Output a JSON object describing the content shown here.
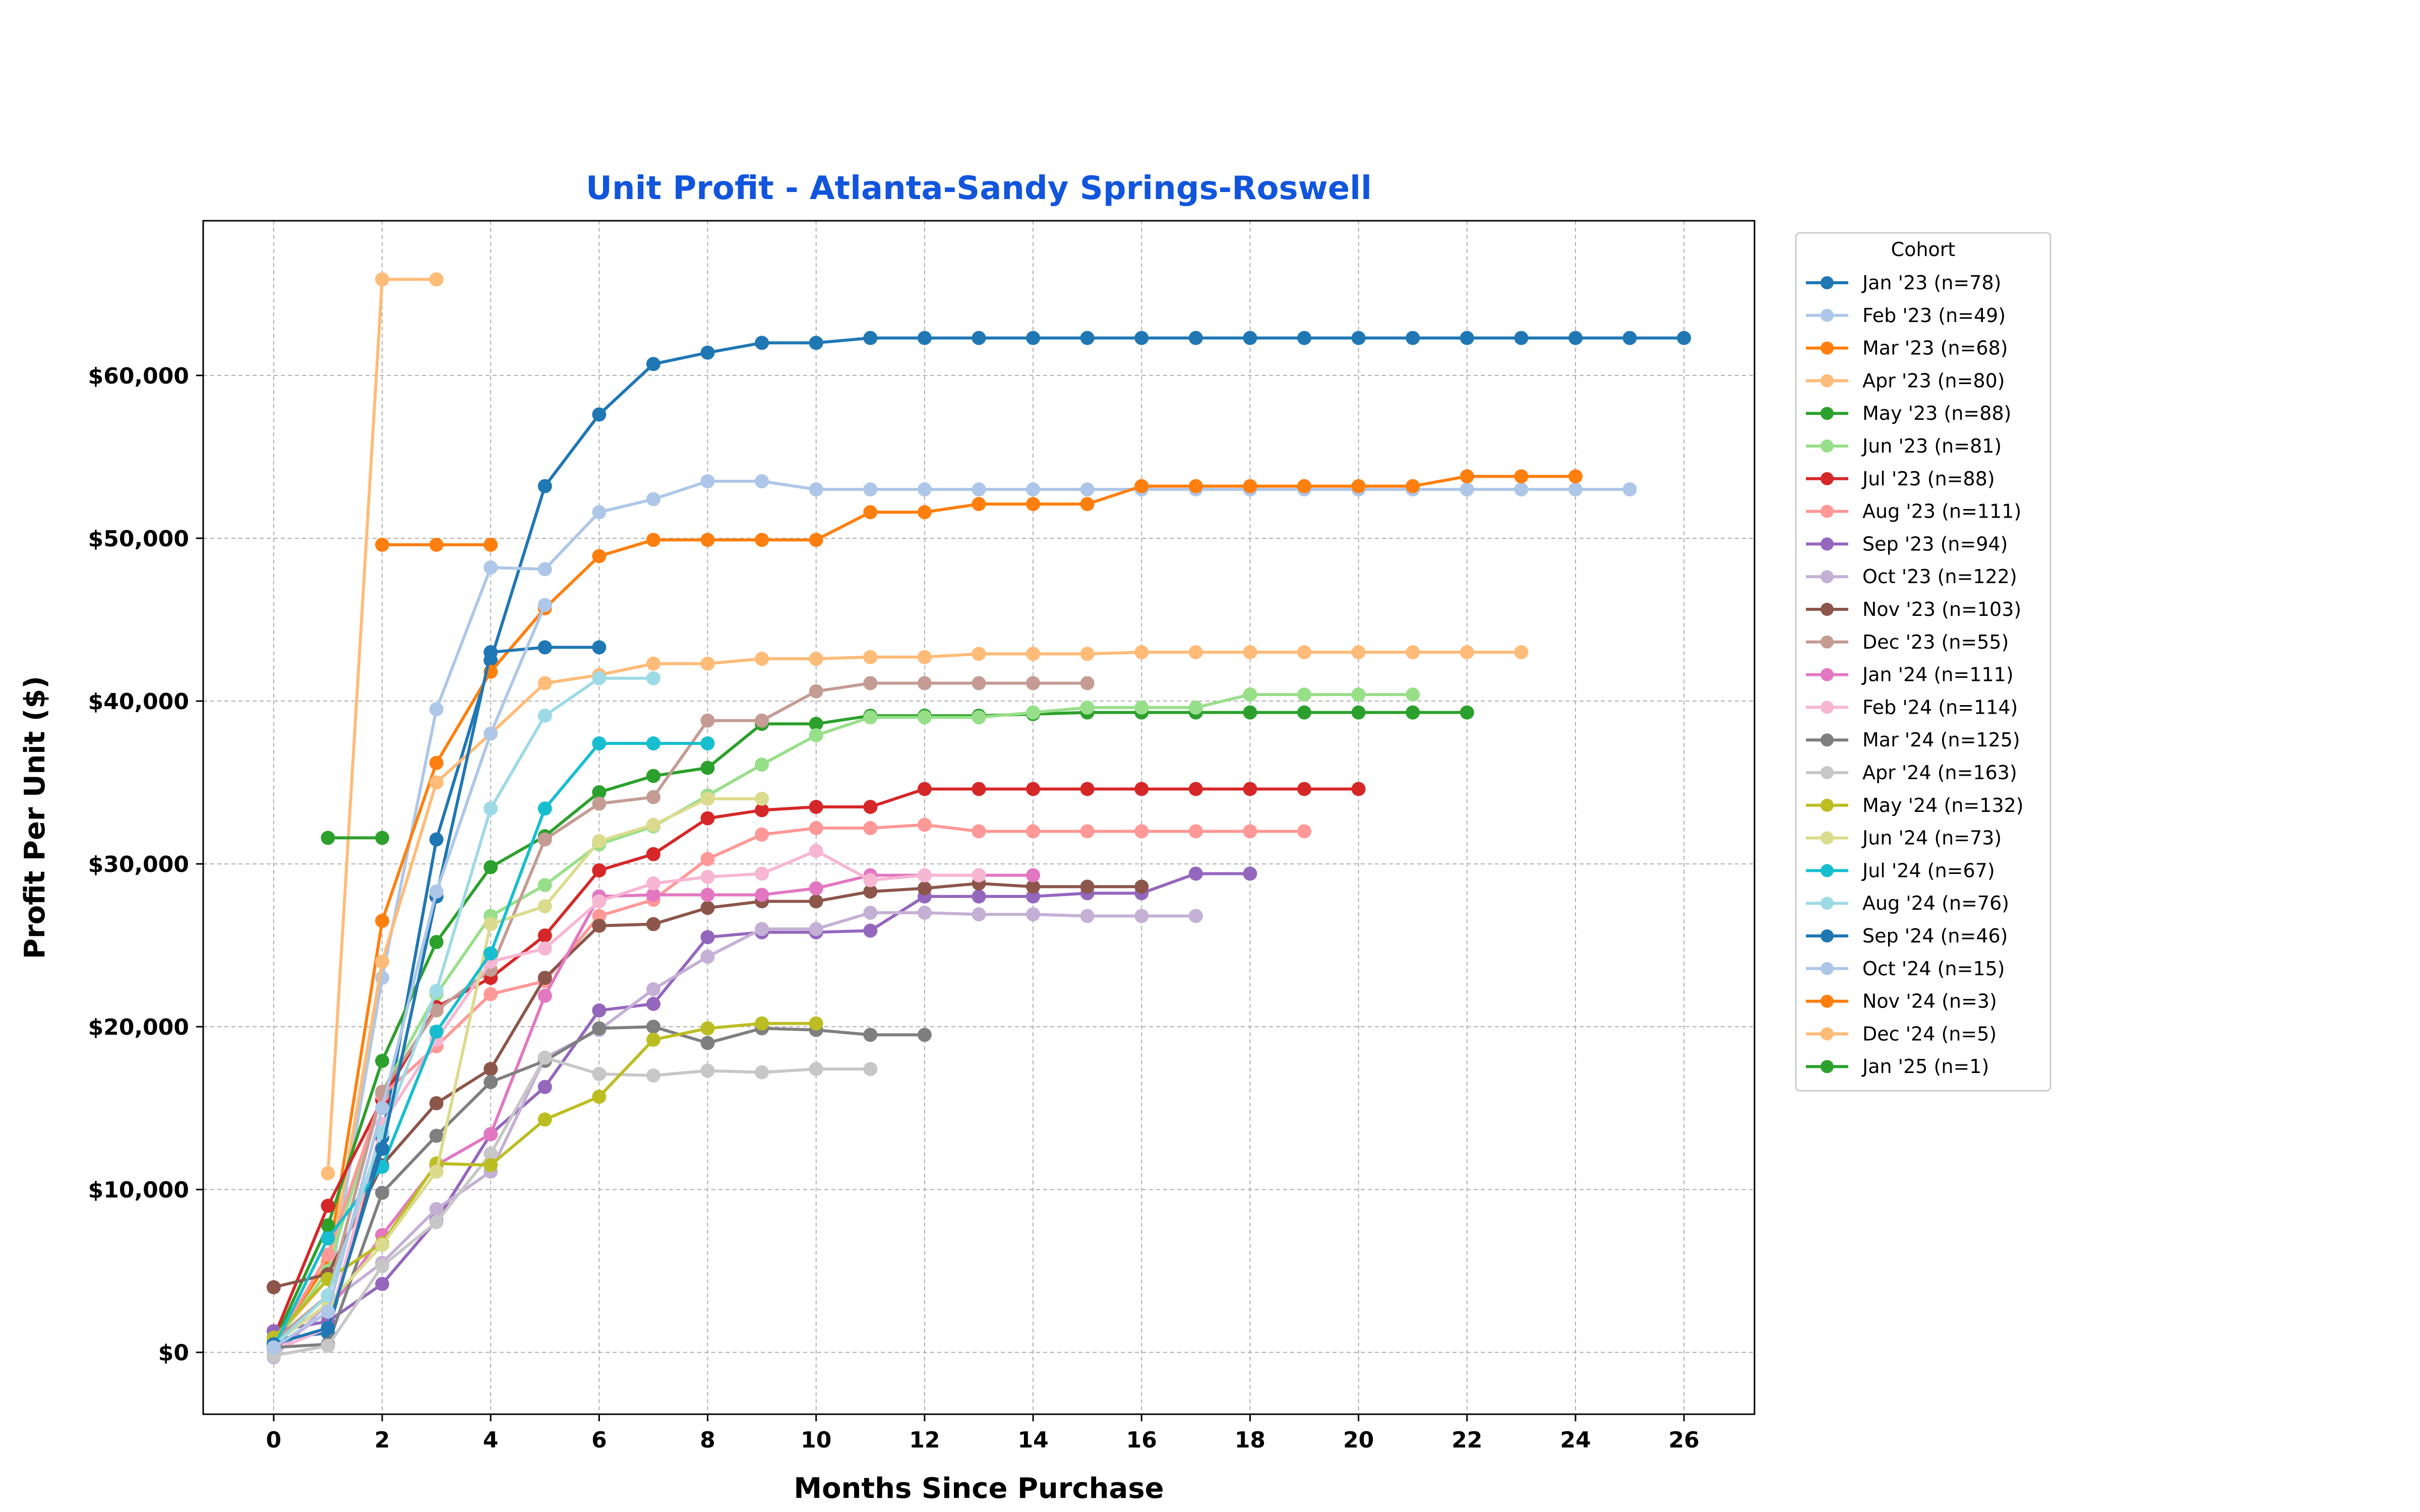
{
  "chart_data": {
    "type": "line",
    "title": "Unit Profit - Atlanta-Sandy Springs-Roswell",
    "xlabel": "Months Since Purchase",
    "ylabel": "Profit Per Unit ($)",
    "xlim": [
      -1.3,
      27.3
    ],
    "ylim": [
      -3800,
      69500
    ],
    "xticks": [
      0,
      2,
      4,
      6,
      8,
      10,
      12,
      14,
      16,
      18,
      20,
      22,
      24,
      26
    ],
    "yticks": [
      0,
      10000,
      20000,
      30000,
      40000,
      50000,
      60000
    ],
    "ytick_labels": [
      "$0",
      "$10,000",
      "$20,000",
      "$30,000",
      "$40,000",
      "$50,000",
      "$60,000"
    ],
    "grid": true,
    "legend_title": "Cohort",
    "legend_placement": "outside-right",
    "series": [
      {
        "name": "Jan '23 (n=78)",
        "color": "#1f77b4",
        "y": [
          800,
          1200,
          13200,
          31500,
          42500,
          53200,
          57600,
          60700,
          61400,
          62000,
          62000,
          62300,
          62300,
          62300,
          62300,
          62300,
          62300,
          62300,
          62300,
          62300,
          62300,
          62300,
          62300,
          62300,
          62300,
          62300,
          62300
        ]
      },
      {
        "name": "Feb '23 (n=49)",
        "color": "#aec7e8",
        "y": [
          500,
          3500,
          23000,
          39500,
          48200,
          48100,
          51600,
          52400,
          53500,
          53500,
          53000,
          53000,
          53000,
          53000,
          53000,
          53000,
          53000,
          53000,
          53000,
          53000,
          53000,
          53000,
          53000,
          53000,
          53000,
          53000
        ]
      },
      {
        "name": "Mar '23 (n=68)",
        "color": "#ff7f0e",
        "y": [
          600,
          5500,
          26500,
          36200,
          41800,
          45700,
          48900,
          49900,
          49900,
          49900,
          49900,
          51600,
          51600,
          52100,
          52100,
          52100,
          53200,
          53200,
          53200,
          53200,
          53200,
          53200,
          53800,
          53800,
          53800
        ]
      },
      {
        "name": "Apr '23 (n=80)",
        "color": "#ffbb78",
        "y": [
          700,
          4500,
          24000,
          35000,
          38000,
          41100,
          41600,
          42300,
          42300,
          42600,
          42600,
          42700,
          42700,
          42900,
          42900,
          42900,
          43000,
          43000,
          43000,
          43000,
          43000,
          43000,
          43000,
          43000
        ]
      },
      {
        "name": "May '23 (n=88)",
        "color": "#2ca02c",
        "y": [
          600,
          7800,
          17900,
          25200,
          29800,
          31700,
          34400,
          35400,
          35900,
          38600,
          38600,
          39100,
          39100,
          39100,
          39200,
          39300,
          39300,
          39300,
          39300,
          39300,
          39300,
          39300,
          39300
        ]
      },
      {
        "name": "Jun '23 (n=81)",
        "color": "#98df8a",
        "y": [
          500,
          5000,
          16000,
          22000,
          26800,
          28700,
          31200,
          32300,
          34200,
          36100,
          37900,
          39000,
          39000,
          39000,
          39300,
          39600,
          39600,
          39600,
          40400,
          40400,
          40400,
          40400
        ]
      },
      {
        "name": "Jul '23 (n=88)",
        "color": "#d62728",
        "y": [
          900,
          9000,
          15500,
          21200,
          23000,
          25600,
          29600,
          30600,
          32800,
          33300,
          33500,
          33500,
          34600,
          34600,
          34600,
          34600,
          34600,
          34600,
          34600,
          34600,
          34600
        ]
      },
      {
        "name": "Aug '23 (n=111)",
        "color": "#ff9896",
        "y": [
          400,
          6000,
          15800,
          18800,
          22000,
          22800,
          26800,
          27800,
          30300,
          31800,
          32200,
          32200,
          32400,
          32000,
          32000,
          32000,
          32000,
          32000,
          32000,
          32000
        ]
      },
      {
        "name": "Sep '23 (n=94)",
        "color": "#9467bd",
        "y": [
          1300,
          1900,
          4200,
          8100,
          13400,
          16300,
          21000,
          21400,
          25500,
          25800,
          25800,
          25900,
          28000,
          28000,
          28000,
          28200,
          28200,
          29400,
          29400
        ]
      },
      {
        "name": "Oct '23 (n=122)",
        "color": "#c5b0d5",
        "y": [
          -300,
          3000,
          5500,
          8800,
          11100,
          18100,
          19800,
          22300,
          24300,
          26000,
          26000,
          27000,
          27000,
          26900,
          26900,
          26800,
          26800,
          26800
        ]
      },
      {
        "name": "Nov '23 (n=103)",
        "color": "#8c564b",
        "y": [
          4000,
          4800,
          11500,
          15300,
          17400,
          23000,
          26200,
          26300,
          27300,
          27700,
          27700,
          28300,
          28500,
          28800,
          28600,
          28600,
          28600
        ]
      },
      {
        "name": "Dec '23 (n=55)",
        "color": "#c49c94",
        "y": [
          700,
          3500,
          16000,
          21000,
          23500,
          31500,
          33700,
          34100,
          38800,
          38800,
          40600,
          41100,
          41100,
          41100,
          41100,
          41100
        ]
      },
      {
        "name": "Jan '24 (n=111)",
        "color": "#e377c2",
        "y": [
          200,
          2500,
          7200,
          11500,
          13400,
          21900,
          28000,
          28100,
          28100,
          28100,
          28500,
          29300,
          29300,
          29300,
          29300
        ]
      },
      {
        "name": "Feb '24 (n=114)",
        "color": "#f7b6d2",
        "y": [
          100,
          1500,
          14000,
          19200,
          24000,
          24800,
          27700,
          28800,
          29200,
          29400,
          30800,
          29000,
          29300,
          29300
        ]
      },
      {
        "name": "Mar '24 (n=125)",
        "color": "#7f7f7f",
        "y": [
          300,
          500,
          9800,
          13300,
          16600,
          17900,
          19900,
          20000,
          19000,
          19900,
          19800,
          19500,
          19500
        ]
      },
      {
        "name": "Apr '24 (n=163)",
        "color": "#c7c7c7",
        "y": [
          -200,
          400,
          5300,
          8000,
          12200,
          18100,
          17100,
          17000,
          17300,
          17200,
          17400,
          17400
        ]
      },
      {
        "name": "May '24 (n=132)",
        "color": "#bcbd22",
        "y": [
          900,
          4500,
          6700,
          11600,
          11500,
          14300,
          15700,
          19200,
          19900,
          20200,
          20200
        ]
      },
      {
        "name": "Jun '24 (n=73)",
        "color": "#dbdb8d",
        "y": [
          500,
          3000,
          6600,
          11100,
          26300,
          27400,
          31400,
          32400,
          34000,
          34000
        ]
      },
      {
        "name": "Jul '24 (n=67)",
        "color": "#17becf",
        "y": [
          300,
          7000,
          11400,
          19700,
          24500,
          33400,
          37400,
          37400,
          37400
        ]
      },
      {
        "name": "Aug '24 (n=76)",
        "color": "#9edae5",
        "y": [
          400,
          3500,
          13500,
          22200,
          33400,
          39100,
          41400,
          41400
        ]
      },
      {
        "name": "Sep '24 (n=46)",
        "color": "#1f77b4",
        "y": [
          500,
          1500,
          12500,
          28000,
          43000,
          43300,
          43300
        ]
      },
      {
        "name": "Oct '24 (n=15)",
        "color": "#aec7e8",
        "y": [
          300,
          2500,
          15000,
          28300,
          38000,
          45900
        ]
      },
      {
        "name": "Nov '24 (n=3)",
        "color": "#ff7f0e",
        "y": [
          null,
          null,
          49600,
          49600,
          49600
        ]
      },
      {
        "name": "Dec '24 (n=5)",
        "color": "#ffbb78",
        "y": [
          null,
          11000,
          65900,
          65900
        ]
      },
      {
        "name": "Jan '25 (n=1)",
        "color": "#2ca02c",
        "y": [
          null,
          31600,
          31600
        ]
      }
    ]
  }
}
